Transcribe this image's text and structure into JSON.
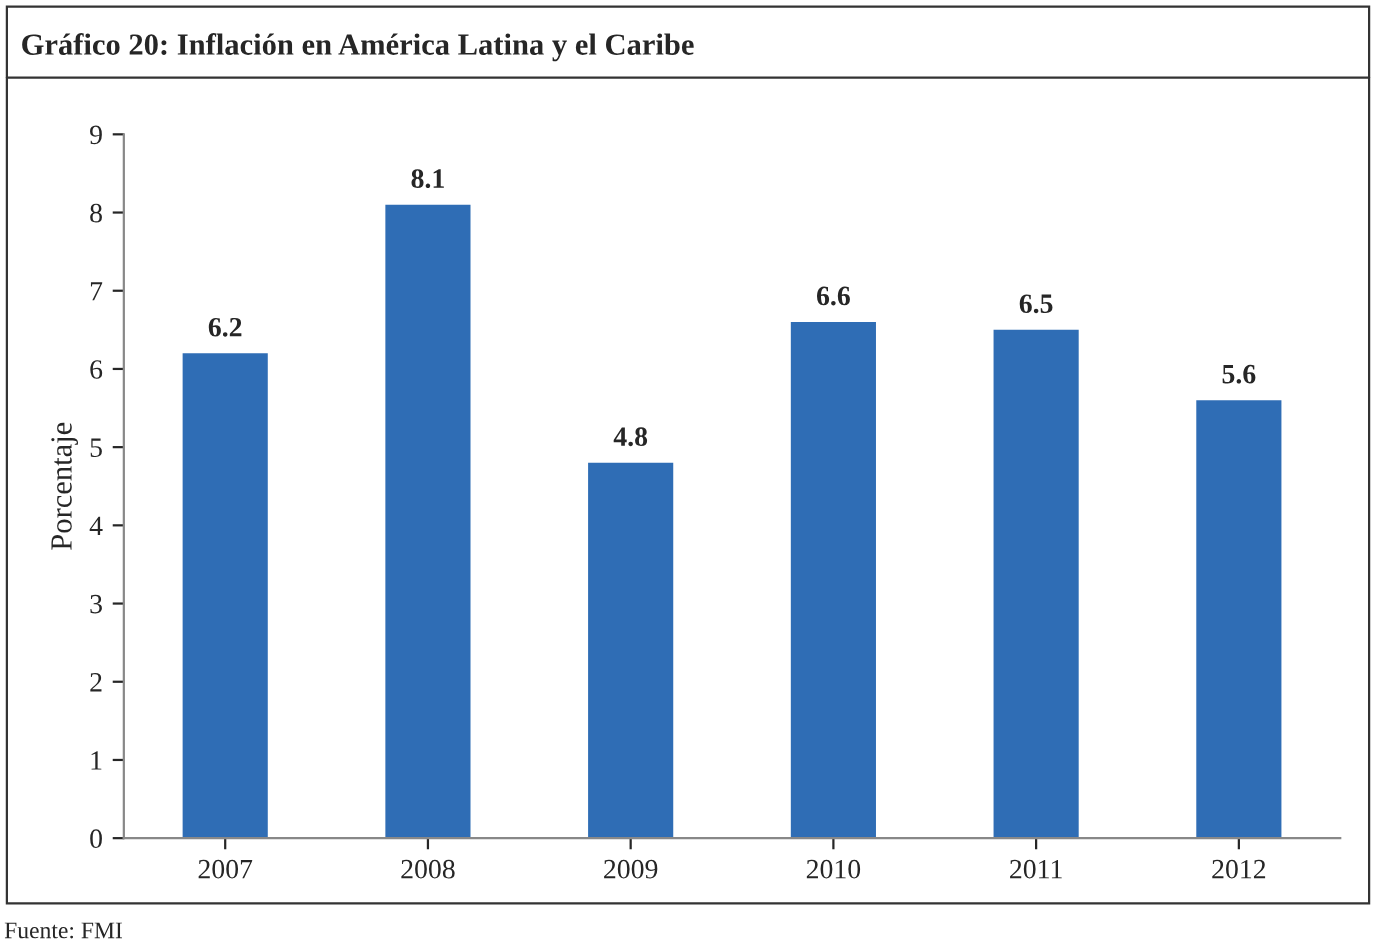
{
  "chart_data": {
    "type": "bar",
    "title": "Gráfico 20: Inflación en América Latina y el Caribe",
    "ylabel": "Porcentaje",
    "categories": [
      "2007",
      "2008",
      "2009",
      "2010",
      "2011",
      "2012"
    ],
    "values": [
      6.2,
      8.1,
      4.8,
      6.6,
      6.5,
      5.6
    ],
    "color": "#2f6db5",
    "ylim": [
      0,
      9
    ],
    "yticks": [
      0,
      1,
      2,
      3,
      4,
      5,
      6,
      7,
      8,
      9
    ],
    "data_labels": true,
    "grid": false,
    "legend": false,
    "annotations": [
      "Fuente: FMI"
    ]
  }
}
